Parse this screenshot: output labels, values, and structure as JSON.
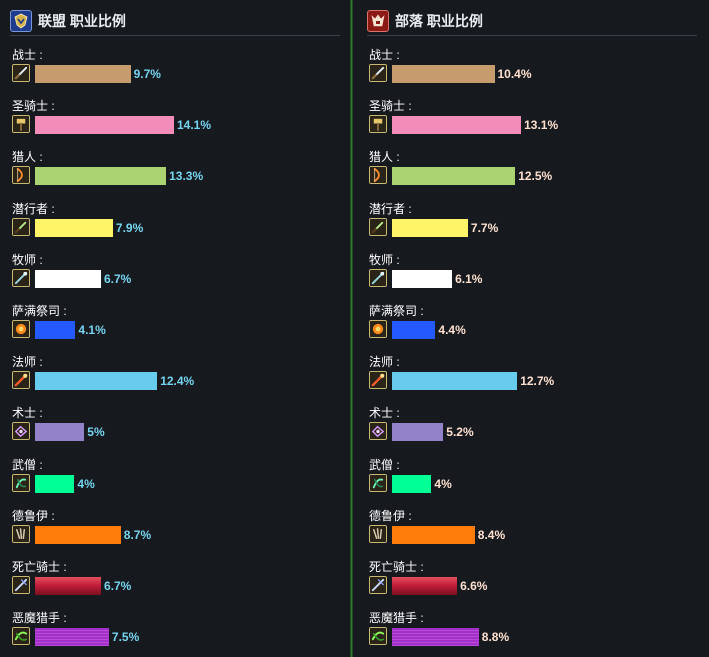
{
  "alliance": {
    "title": "联盟 职业比例",
    "icon": "alliance-crest-icon"
  },
  "horde": {
    "title": "部落 职业比例",
    "icon": "horde-crest-icon"
  },
  "chart_data": [
    {
      "type": "bar",
      "title": "联盟 职业比例",
      "orientation": "horizontal",
      "categories": [
        "战士 :",
        "圣骑士 :",
        "猎人 :",
        "潜行者 :",
        "牧师 :",
        "萨满祭司 :",
        "法师 :",
        "术士 :",
        "武僧 :",
        "德鲁伊 :",
        "死亡骑士 :",
        "恶魔猎手 :"
      ],
      "values": [
        9.7,
        14.1,
        13.3,
        7.9,
        6.7,
        4.1,
        12.4,
        5,
        4,
        8.7,
        6.7,
        7.5
      ],
      "labels": [
        "9.7%",
        "14.1%",
        "13.3%",
        "7.9%",
        "6.7%",
        "4.1%",
        "12.4%",
        "5%",
        "4%",
        "8.7%",
        "6.7%",
        "7.5%"
      ],
      "unit": "%",
      "xlim": [
        0,
        14.1
      ]
    },
    {
      "type": "bar",
      "title": "部落 职业比例",
      "orientation": "horizontal",
      "categories": [
        "战士 :",
        "圣骑士 :",
        "猎人 :",
        "潜行者 :",
        "牧师 :",
        "萨满祭司 :",
        "法师 :",
        "术士 :",
        "武僧 :",
        "德鲁伊 :",
        "死亡骑士 :",
        "恶魔猎手 :"
      ],
      "values": [
        10.4,
        13.1,
        12.5,
        7.7,
        6.1,
        4.4,
        12.7,
        5.2,
        4,
        8.4,
        6.6,
        8.8
      ],
      "labels": [
        "10.4%",
        "13.1%",
        "12.5%",
        "7.7%",
        "6.1%",
        "4.4%",
        "12.7%",
        "5.2%",
        "4%",
        "8.4%",
        "6.6%",
        "8.8%"
      ],
      "unit": "%",
      "xlim": [
        0,
        14.1
      ]
    }
  ],
  "classes": [
    {
      "color": "#c69b6d",
      "icon": "warrior-sword-icon"
    },
    {
      "color": "#f48cba",
      "icon": "paladin-hammer-icon"
    },
    {
      "color": "#aad372",
      "icon": "hunter-bow-icon"
    },
    {
      "color": "#fff468",
      "icon": "rogue-dagger-icon"
    },
    {
      "color": "#ffffff",
      "icon": "priest-wand-icon"
    },
    {
      "color": "#2459ff",
      "icon": "shaman-totem-icon"
    },
    {
      "color": "#68ccef",
      "icon": "mage-staff-icon"
    },
    {
      "color": "#9382c9",
      "icon": "warlock-curse-icon"
    },
    {
      "color": "#00ff96",
      "icon": "monk-fist-icon"
    },
    {
      "color": "#ff7c0a",
      "icon": "druid-claw-icon"
    },
    {
      "color": "#c41e3b",
      "icon": "death-knight-rune-icon"
    },
    {
      "color": "#a330c9",
      "icon": "demon-hunter-glaive-icon"
    }
  ]
}
